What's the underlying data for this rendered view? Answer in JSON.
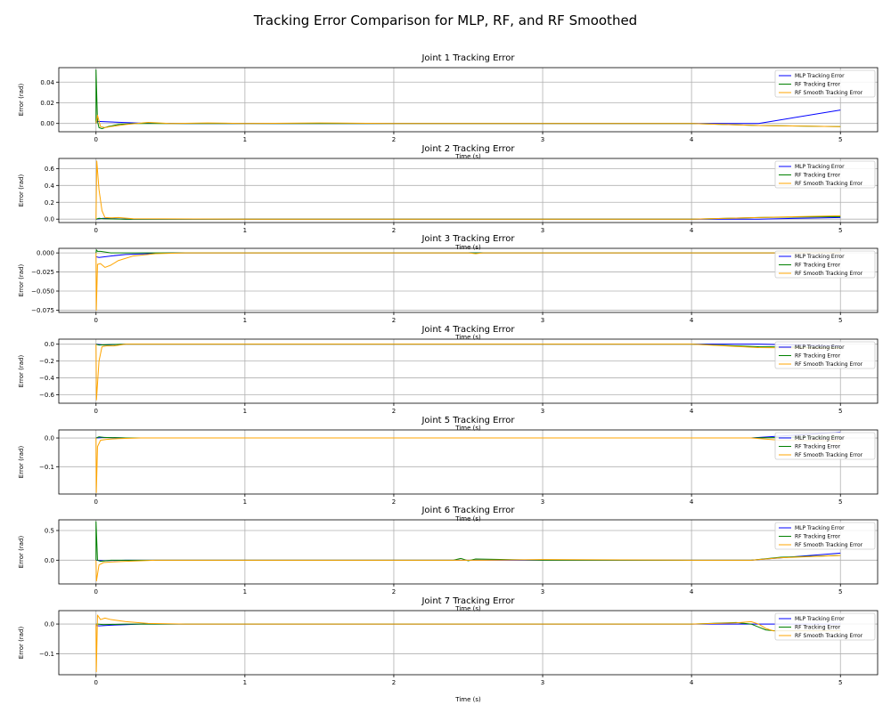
{
  "figure": {
    "title": "Tracking Error Comparison for MLP, RF, and RF Smoothed"
  },
  "colors": {
    "mlp": "#0000ff",
    "rf": "#008000",
    "rf_smooth": "#ffa500",
    "grid": "#b0b0b0"
  },
  "chart_data": [
    {
      "type": "line",
      "title": "Joint 1 Tracking Error",
      "xlabel": "Time (s)",
      "ylabel": "Error (rad)",
      "xlim": [
        -0.25,
        5.25
      ],
      "ylim": [
        -0.008,
        0.054
      ],
      "xticks": [
        0,
        1,
        2,
        3,
        4,
        5
      ],
      "yticks": [
        0.0,
        0.02,
        0.04
      ],
      "ytick_labels": [
        "0.00",
        "0.02",
        "0.04"
      ],
      "grid": true,
      "legend": "top-right",
      "series": [
        {
          "name": "MLP Tracking Error",
          "color_key": "mlp",
          "x": [
            0,
            0.01,
            0.1,
            0.3,
            0.6,
            1.0,
            2.0,
            3.0,
            4.0,
            4.45,
            5.0
          ],
          "y": [
            0.001,
            0.002,
            0.0015,
            0.0003,
            0.0,
            0.0,
            0.0,
            0.0,
            0.0,
            0.0,
            0.013
          ]
        },
        {
          "name": "RF Tracking Error",
          "color_key": "rf",
          "x": [
            0,
            0.0,
            0.01,
            0.02,
            0.04,
            0.08,
            0.15,
            0.25,
            0.4,
            1.0,
            2.0,
            3.0,
            4.0,
            4.45,
            5.0
          ],
          "y": [
            0.0,
            0.052,
            0.002,
            -0.004,
            -0.005,
            -0.003,
            -0.001,
            0.0,
            0.0,
            0.0,
            0.0,
            0.0,
            0.0,
            -0.002,
            -0.003
          ]
        },
        {
          "name": "RF Smooth Tracking Error",
          "color_key": "rf_smooth",
          "x": [
            0,
            0.01,
            0.03,
            0.06,
            0.1,
            0.2,
            0.35,
            0.5,
            0.75,
            1.0,
            1.5,
            2.0,
            3.0,
            4.0,
            4.45,
            5.0
          ],
          "y": [
            0.0,
            0.008,
            -0.003,
            -0.004,
            -0.003,
            -0.001,
            0.001,
            0.0,
            0.0005,
            0.0,
            0.0005,
            0.0,
            0.0,
            0.0,
            -0.002,
            -0.003
          ]
        }
      ]
    },
    {
      "type": "line",
      "title": "Joint 2 Tracking Error",
      "xlabel": "Time (s)",
      "ylabel": "Error (rad)",
      "xlim": [
        -0.25,
        5.25
      ],
      "ylim": [
        -0.04,
        0.72
      ],
      "xticks": [
        0,
        1,
        2,
        3,
        4,
        5
      ],
      "yticks": [
        0.0,
        0.2,
        0.4,
        0.6
      ],
      "ytick_labels": [
        "0.0",
        "0.2",
        "0.4",
        "0.6"
      ],
      "grid": true,
      "legend": "top-right",
      "series": [
        {
          "name": "MLP Tracking Error",
          "color_key": "mlp",
          "x": [
            0,
            0.05,
            0.2,
            1.0,
            2.0,
            3.0,
            4.0,
            4.45,
            5.0
          ],
          "y": [
            0.0,
            0.01,
            0.0,
            0.0,
            0.0,
            0.0,
            0.0,
            0.0,
            0.02
          ]
        },
        {
          "name": "RF Tracking Error",
          "color_key": "rf",
          "x": [
            0,
            0.02,
            0.05,
            0.2,
            1.0,
            2.0,
            3.0,
            4.0,
            4.45,
            5.0
          ],
          "y": [
            0.0,
            0.01,
            0.005,
            0.0,
            0.0,
            0.0,
            0.0,
            0.0,
            0.02,
            0.03
          ]
        },
        {
          "name": "RF Smooth Tracking Error",
          "color_key": "rf_smooth",
          "x": [
            0,
            0.005,
            0.02,
            0.04,
            0.06,
            0.1,
            0.15,
            0.25,
            1.0,
            2.0,
            3.0,
            4.0,
            4.45,
            5.0
          ],
          "y": [
            0.0,
            0.69,
            0.35,
            0.1,
            0.02,
            0.015,
            0.02,
            0.005,
            0.0,
            0.0,
            0.0,
            0.0,
            0.02,
            0.04
          ]
        }
      ]
    },
    {
      "type": "line",
      "title": "Joint 3 Tracking Error",
      "xlabel": "Time (s)",
      "ylabel": "Error (rad)",
      "xlim": [
        -0.25,
        5.25
      ],
      "ylim": [
        -0.078,
        0.006
      ],
      "xticks": [
        0,
        1,
        2,
        3,
        4,
        5
      ],
      "yticks": [
        0.0,
        -0.025,
        -0.05,
        -0.075
      ],
      "ytick_labels": [
        "0.000",
        "−0.025",
        "−0.050",
        "−0.075"
      ],
      "grid": true,
      "legend": "top-right",
      "series": [
        {
          "name": "MLP Tracking Error",
          "color_key": "mlp",
          "x": [
            0,
            0.02,
            0.1,
            0.2,
            0.35,
            0.5,
            1.0,
            2.0,
            3.0,
            4.0,
            5.0
          ],
          "y": [
            -0.005,
            -0.006,
            -0.004,
            -0.002,
            -0.001,
            0.0,
            0.0,
            0.0,
            0.0,
            0.0,
            0.0
          ]
        },
        {
          "name": "RF Tracking Error",
          "color_key": "rf",
          "x": [
            0,
            0.003,
            0.01,
            0.03,
            0.1,
            0.2,
            0.4,
            1.0,
            2.0,
            3.0,
            4.0,
            5.0
          ],
          "y": [
            0.0,
            0.004,
            0.002,
            0.002,
            0.0,
            0.0,
            0.0,
            0.0,
            0.0,
            0.0,
            0.0,
            0.0
          ]
        },
        {
          "name": "RF Smooth Tracking Error",
          "color_key": "rf_smooth",
          "x": [
            0,
            0.002,
            0.01,
            0.03,
            0.06,
            0.1,
            0.15,
            0.25,
            0.4,
            0.6,
            1.0,
            2.0,
            2.5,
            2.55,
            2.6,
            3.0,
            4.0,
            5.0
          ],
          "y": [
            0.0,
            -0.075,
            -0.015,
            -0.014,
            -0.019,
            -0.016,
            -0.01,
            -0.004,
            -0.001,
            0.0,
            0.0,
            0.0,
            0.0,
            -0.001,
            0.0,
            0.0,
            0.0,
            0.0
          ]
        }
      ]
    },
    {
      "type": "line",
      "title": "Joint 4 Tracking Error",
      "xlabel": "Time (s)",
      "ylabel": "Error (rad)",
      "xlim": [
        -0.25,
        5.25
      ],
      "ylim": [
        -0.7,
        0.06
      ],
      "xticks": [
        0,
        1,
        2,
        3,
        4,
        5
      ],
      "yticks": [
        0.0,
        -0.2,
        -0.4,
        -0.6
      ],
      "ytick_labels": [
        "0.0",
        "−0.2",
        "−0.4",
        "−0.6"
      ],
      "grid": true,
      "legend": "top-right",
      "series": [
        {
          "name": "MLP Tracking Error",
          "color_key": "mlp",
          "x": [
            0,
            0.05,
            0.2,
            1.0,
            2.0,
            3.0,
            4.0,
            4.45,
            5.0
          ],
          "y": [
            0.0,
            -0.01,
            0.0,
            0.0,
            0.0,
            0.0,
            0.0,
            0.0,
            -0.02
          ]
        },
        {
          "name": "RF Tracking Error",
          "color_key": "rf",
          "x": [
            0,
            0.02,
            0.1,
            0.2,
            1.0,
            2.0,
            3.0,
            4.0,
            4.45,
            5.0
          ],
          "y": [
            0.0,
            -0.01,
            -0.005,
            0.0,
            0.0,
            0.0,
            0.0,
            0.0,
            -0.03,
            -0.04
          ]
        },
        {
          "name": "RF Smooth Tracking Error",
          "color_key": "rf_smooth",
          "x": [
            0,
            0.003,
            0.02,
            0.04,
            0.07,
            0.12,
            0.2,
            1.0,
            2.0,
            3.0,
            4.0,
            4.45,
            5.0
          ],
          "y": [
            0.0,
            -0.66,
            -0.2,
            -0.03,
            -0.02,
            -0.02,
            0.0,
            0.0,
            0.0,
            0.0,
            0.0,
            -0.04,
            -0.05
          ]
        }
      ]
    },
    {
      "type": "line",
      "title": "Joint 5 Tracking Error",
      "xlabel": "Time (s)",
      "ylabel": "Error (rad)",
      "xlim": [
        -0.25,
        5.25
      ],
      "ylim": [
        -0.195,
        0.028
      ],
      "xticks": [
        0,
        1,
        2,
        3,
        4,
        5
      ],
      "yticks": [
        0.0,
        -0.1
      ],
      "ytick_labels": [
        "0.0",
        "−0.1"
      ],
      "grid": true,
      "legend": "top-right",
      "series": [
        {
          "name": "MLP Tracking Error",
          "color_key": "mlp",
          "x": [
            0,
            0.05,
            0.2,
            1.0,
            2.0,
            3.0,
            4.0,
            4.4,
            5.0
          ],
          "y": [
            0.0,
            0.002,
            0.0,
            0.0,
            0.0,
            0.0,
            0.0,
            0.0,
            0.02
          ]
        },
        {
          "name": "RF Tracking Error",
          "color_key": "rf",
          "x": [
            0,
            0.02,
            0.05,
            0.2,
            1.0,
            2.0,
            3.0,
            4.0,
            4.4,
            5.0
          ],
          "y": [
            0.0,
            0.004,
            0.002,
            0.0,
            0.0,
            0.0,
            0.0,
            0.0,
            0.0,
            0.005
          ]
        },
        {
          "name": "RF Smooth Tracking Error",
          "color_key": "rf_smooth",
          "x": [
            0,
            0.002,
            0.01,
            0.03,
            0.07,
            0.15,
            0.3,
            1.0,
            2.0,
            3.0,
            4.0,
            4.4,
            4.6,
            5.0
          ],
          "y": [
            0.0,
            -0.19,
            -0.03,
            -0.008,
            -0.005,
            -0.002,
            0.0,
            0.0,
            0.0,
            0.0,
            0.0,
            0.0,
            -0.008,
            -0.01
          ]
        }
      ]
    },
    {
      "type": "line",
      "title": "Joint 6 Tracking Error",
      "xlabel": "Time (s)",
      "ylabel": "Error (rad)",
      "xlim": [
        -0.25,
        5.25
      ],
      "ylim": [
        -0.4,
        0.68
      ],
      "xticks": [
        0,
        1,
        2,
        3,
        4,
        5
      ],
      "yticks": [
        0.0,
        0.5
      ],
      "ytick_labels": [
        "0.0",
        "0.5"
      ],
      "grid": true,
      "legend": "top-right",
      "series": [
        {
          "name": "MLP Tracking Error",
          "color_key": "mlp",
          "x": [
            0,
            0.05,
            0.2,
            1.0,
            2.0,
            3.0,
            4.0,
            4.4,
            5.0
          ],
          "y": [
            0.0,
            -0.01,
            0.0,
            0.0,
            0.0,
            0.0,
            0.0,
            0.0,
            0.12
          ]
        },
        {
          "name": "RF Tracking Error",
          "color_key": "rf",
          "x": [
            0,
            0.0,
            0.01,
            0.03,
            0.1,
            0.3,
            1.0,
            2.0,
            2.4,
            2.45,
            2.5,
            2.55,
            3.0,
            4.0,
            4.4,
            4.6,
            5.0
          ],
          "y": [
            0.0,
            0.65,
            0.0,
            -0.02,
            0.0,
            0.0,
            0.0,
            0.0,
            0.0,
            0.03,
            -0.01,
            0.02,
            0.0,
            0.0,
            0.0,
            0.05,
            0.08
          ]
        },
        {
          "name": "RF Smooth Tracking Error",
          "color_key": "rf_smooth",
          "x": [
            0,
            0.003,
            0.02,
            0.05,
            0.1,
            0.2,
            0.4,
            1.0,
            2.0,
            2.4,
            2.6,
            3.0,
            4.0,
            4.4,
            4.6,
            5.0
          ],
          "y": [
            0.0,
            -0.35,
            -0.08,
            -0.04,
            -0.03,
            -0.02,
            0.0,
            0.0,
            0.0,
            0.0,
            0.0,
            0.01,
            0.0,
            0.0,
            0.04,
            0.08
          ]
        }
      ]
    },
    {
      "type": "line",
      "title": "Joint 7 Tracking Error",
      "xlabel": "Time (s)",
      "ylabel": "Error (rad)",
      "xlim": [
        -0.25,
        5.25
      ],
      "ylim": [
        -0.17,
        0.045
      ],
      "xticks": [
        0,
        1,
        2,
        3,
        4,
        5
      ],
      "yticks": [
        0.0,
        -0.1
      ],
      "ytick_labels": [
        "0.0",
        "−0.1"
      ],
      "grid": true,
      "legend": "top-right",
      "series": [
        {
          "name": "MLP Tracking Error",
          "color_key": "mlp",
          "x": [
            0,
            0.02,
            0.1,
            0.2,
            0.3,
            1.0,
            2.0,
            3.0,
            4.0,
            4.3,
            4.5,
            5.0
          ],
          "y": [
            -0.005,
            -0.006,
            -0.004,
            -0.002,
            0.0,
            0.0,
            0.0,
            0.0,
            0.0,
            0.0,
            0.0,
            0.0
          ]
        },
        {
          "name": "RF Tracking Error",
          "color_key": "rf",
          "x": [
            0,
            0.01,
            0.05,
            0.2,
            1.0,
            2.0,
            3.0,
            4.0,
            4.3,
            4.4,
            4.45,
            4.5,
            4.55,
            5.0
          ],
          "y": [
            0.0,
            0.0,
            -0.002,
            0.0,
            0.0,
            0.0,
            0.0,
            0.0,
            0.005,
            0.0,
            -0.01,
            -0.02,
            -0.022,
            -0.022
          ]
        },
        {
          "name": "RF Smooth Tracking Error",
          "color_key": "rf_smooth",
          "x": [
            0,
            0.002,
            0.01,
            0.03,
            0.06,
            0.1,
            0.2,
            0.35,
            0.6,
            1.0,
            2.0,
            3.0,
            4.0,
            4.3,
            4.4,
            4.45,
            4.5,
            4.55,
            5.0
          ],
          "y": [
            0.0,
            -0.16,
            0.03,
            0.015,
            0.02,
            0.015,
            0.008,
            0.002,
            0.0,
            0.0,
            0.0,
            0.0,
            0.0,
            0.004,
            0.008,
            0.0,
            -0.015,
            -0.023,
            -0.023
          ]
        }
      ]
    }
  ]
}
